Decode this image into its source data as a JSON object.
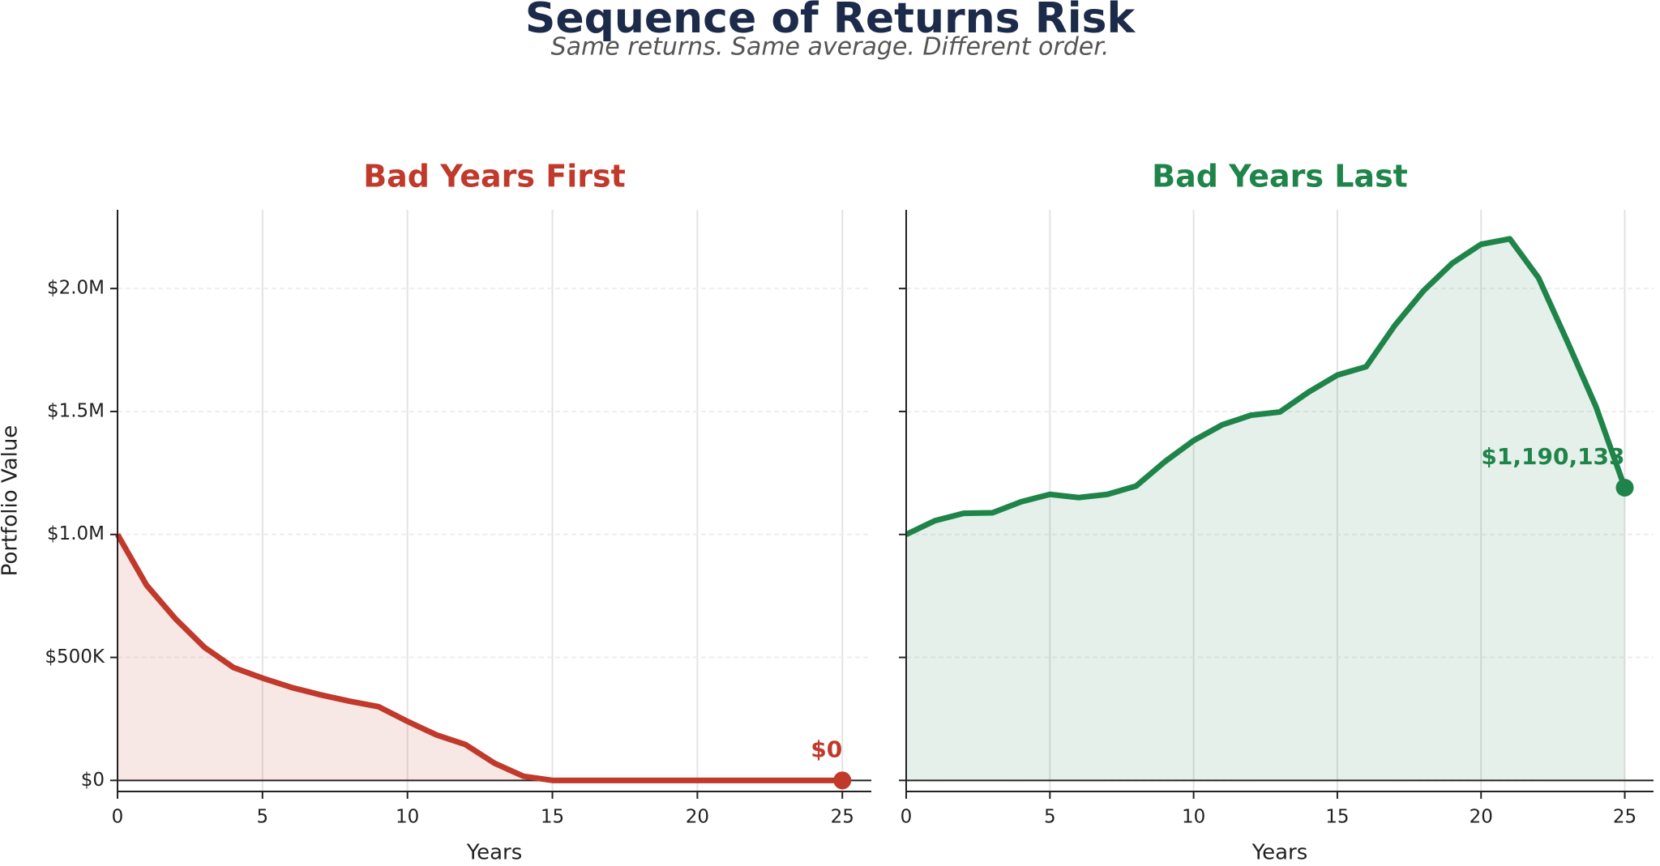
{
  "title": "Sequence of Returns Risk",
  "subtitle": "Same returns. Same average. Different order.",
  "chart_data": [
    {
      "type": "area",
      "title": "Bad Years First",
      "xlabel": "Years",
      "ylabel": "Portfolio Value",
      "color": "#c0392b",
      "x": [
        0,
        1,
        2,
        3,
        4,
        5,
        6,
        7,
        8,
        9,
        10,
        11,
        12,
        13,
        14,
        15,
        16,
        17,
        18,
        19,
        20,
        21,
        22,
        23,
        24,
        25
      ],
      "values": [
        1000000,
        794000,
        657000,
        541000,
        459000,
        416000,
        378000,
        348000,
        322000,
        300000,
        240000,
        185000,
        146000,
        70000,
        17000,
        0,
        0,
        0,
        0,
        0,
        0,
        0,
        0,
        0,
        0,
        0
      ],
      "value_labels": [
        null,
        null,
        null,
        null,
        null,
        null,
        null,
        null,
        null,
        null,
        null,
        null,
        null,
        null,
        null,
        null,
        null,
        null,
        null,
        null,
        null,
        null,
        null,
        null,
        null,
        "$0"
      ],
      "xlim": [
        0,
        26
      ],
      "ylim": [
        -45000,
        2320000
      ],
      "xticks": [
        0,
        5,
        10,
        15,
        20,
        25
      ],
      "yticks": [
        {
          "value": 0,
          "label": "$0"
        },
        {
          "value": 500000,
          "label": "$500K"
        },
        {
          "value": 1000000,
          "label": "$1.0M"
        },
        {
          "value": 1500000,
          "label": "$1.5M"
        },
        {
          "value": 2000000,
          "label": "$2.0M"
        }
      ],
      "grid": true
    },
    {
      "type": "area",
      "title": "Bad Years Last",
      "xlabel": "Years",
      "color": "#1e8449",
      "x": [
        0,
        1,
        2,
        3,
        4,
        5,
        6,
        7,
        8,
        9,
        10,
        11,
        12,
        13,
        14,
        15,
        16,
        17,
        18,
        19,
        20,
        21,
        22,
        23,
        24,
        25
      ],
      "values": [
        1000000,
        1056000,
        1086000,
        1088000,
        1133000,
        1163000,
        1150000,
        1163000,
        1197000,
        1296000,
        1382000,
        1446000,
        1485000,
        1498000,
        1579000,
        1648000,
        1682000,
        1850000,
        1991000,
        2103000,
        2180000,
        2202000,
        2043000,
        1785000,
        1519000,
        1190133
      ],
      "value_labels": [
        null,
        null,
        null,
        null,
        null,
        null,
        null,
        null,
        null,
        null,
        null,
        null,
        null,
        null,
        null,
        null,
        null,
        null,
        null,
        null,
        null,
        null,
        null,
        null,
        null,
        "$1,190,133"
      ],
      "xlim": [
        0,
        26
      ],
      "ylim": [
        -45000,
        2320000
      ],
      "xticks": [
        0,
        5,
        10,
        15,
        20,
        25
      ],
      "yticks": [
        0,
        500000,
        1000000,
        1500000,
        2000000
      ],
      "grid": true
    }
  ]
}
